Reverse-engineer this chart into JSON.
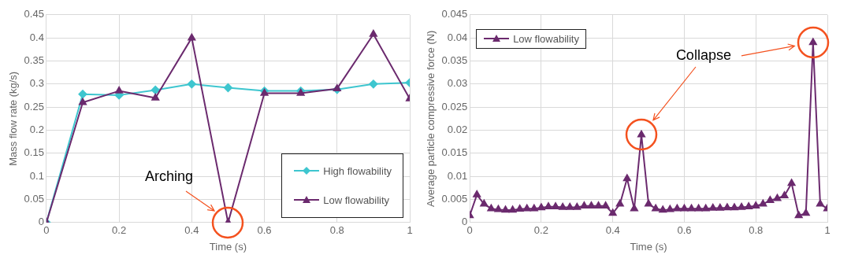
{
  "chart_data": [
    {
      "type": "line",
      "xlabel": "Time (s)",
      "ylabel": "Mass flow rate (kg/s)",
      "x": [
        0,
        0.1,
        0.2,
        0.3,
        0.4,
        0.5,
        0.6,
        0.7,
        0.8,
        0.9,
        1
      ],
      "series": [
        {
          "name": "High flowability",
          "color": "#3ec6cf",
          "marker": "diamond",
          "values": [
            0,
            0.278,
            0.276,
            0.287,
            0.3,
            0.292,
            0.285,
            0.285,
            0.288,
            0.3,
            0.303
          ]
        },
        {
          "name": "Low flowability",
          "color": "#6b2a6e",
          "marker": "triangle",
          "values": [
            0,
            0.26,
            0.285,
            0.27,
            0.4,
            0,
            0.28,
            0.28,
            0.29,
            0.408,
            0.268
          ]
        }
      ],
      "xlim": [
        0,
        1
      ],
      "xticks": [
        0,
        0.2,
        0.4,
        0.6,
        0.8,
        1
      ],
      "ylim": [
        0,
        0.45
      ],
      "yticks": [
        0,
        0.05,
        0.1,
        0.15,
        0.2,
        0.25,
        0.3,
        0.35,
        0.4,
        0.45
      ],
      "grid": true,
      "legend": "bottom right",
      "annotations": [
        "Arching"
      ]
    },
    {
      "type": "line",
      "xlabel": "Time (s)",
      "ylabel": "Average particle compressive force (N)",
      "x": [
        0,
        0.02,
        0.04,
        0.06,
        0.08,
        0.1,
        0.12,
        0.14,
        0.16,
        0.18,
        0.2,
        0.22,
        0.24,
        0.26,
        0.28,
        0.3,
        0.32,
        0.34,
        0.36,
        0.38,
        0.4,
        0.42,
        0.44,
        0.46,
        0.48,
        0.5,
        0.52,
        0.54,
        0.56,
        0.58,
        0.6,
        0.62,
        0.64,
        0.66,
        0.68,
        0.7,
        0.72,
        0.74,
        0.76,
        0.78,
        0.8,
        0.82,
        0.84,
        0.86,
        0.88,
        0.9,
        0.92,
        0.94,
        0.96,
        0.98,
        1
      ],
      "series": [
        {
          "name": "Low flowability",
          "color": "#6b2a6e",
          "marker": "triangle",
          "values": [
            0.0015,
            0.006,
            0.004,
            0.003,
            0.0028,
            0.0027,
            0.0027,
            0.0029,
            0.003,
            0.003,
            0.0032,
            0.0034,
            0.0034,
            0.0033,
            0.0033,
            0.0033,
            0.0036,
            0.0036,
            0.0036,
            0.0036,
            0.002,
            0.004,
            0.0095,
            0.003,
            0.019,
            0.004,
            0.003,
            0.0027,
            0.0028,
            0.003,
            0.003,
            0.003,
            0.003,
            0.003,
            0.0031,
            0.0031,
            0.0032,
            0.0032,
            0.0033,
            0.0034,
            0.0036,
            0.004,
            0.0048,
            0.0052,
            0.0058,
            0.0085,
            0.0015,
            0.002,
            0.039,
            0.004,
            0.003
          ]
        }
      ],
      "xlim": [
        0,
        1
      ],
      "xticks": [
        0,
        0.2,
        0.4,
        0.6,
        0.8,
        1
      ],
      "ylim": [
        0,
        0.045
      ],
      "yticks": [
        0,
        0.005,
        0.01,
        0.015,
        0.02,
        0.025,
        0.03,
        0.035,
        0.04,
        0.045
      ],
      "grid": true,
      "legend": "top left",
      "annotations": [
        "Collapse"
      ]
    }
  ]
}
